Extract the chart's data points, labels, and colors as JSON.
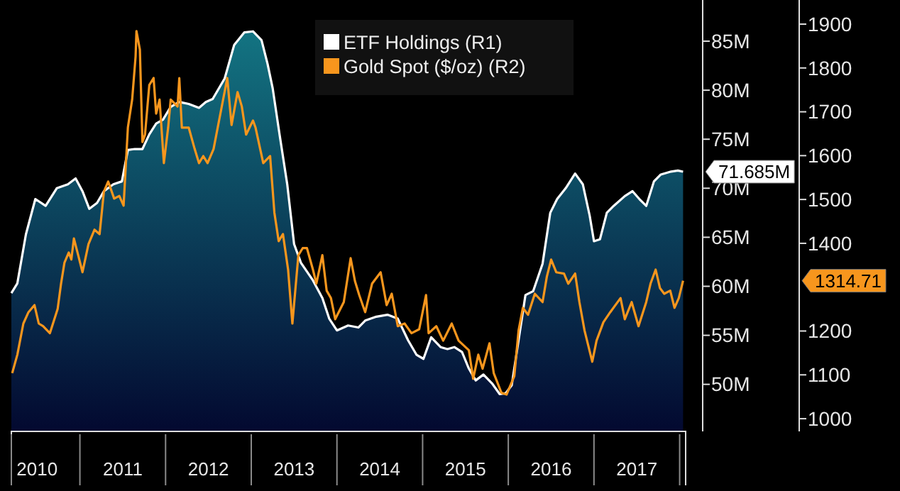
{
  "chart_data": {
    "type": "area",
    "xlim": [
      2010.2,
      2018.07
    ],
    "xticks": [
      {
        "value": 2010.5,
        "label": "2010"
      },
      {
        "value": 2011.5,
        "label": "2011"
      },
      {
        "value": 2012.5,
        "label": "2012"
      },
      {
        "value": 2013.5,
        "label": "2013"
      },
      {
        "value": 2014.5,
        "label": "2014"
      },
      {
        "value": 2015.5,
        "label": "2015"
      },
      {
        "value": 2016.5,
        "label": "2016"
      },
      {
        "value": 2017.5,
        "label": "2017"
      }
    ],
    "ylim": [
      45.2,
      89.2
    ],
    "yticks": [
      {
        "value": 50,
        "label": "50M"
      },
      {
        "value": 55,
        "label": "55M"
      },
      {
        "value": 60,
        "label": "60M"
      },
      {
        "value": 65,
        "label": "65M"
      },
      {
        "value": 70,
        "label": "70M"
      },
      {
        "value": 75,
        "label": "75M"
      },
      {
        "value": 80,
        "label": "80M"
      },
      {
        "value": 85,
        "label": "85M"
      }
    ],
    "y2lim": [
      971,
      1955
    ],
    "y2ticks": [
      1000,
      1100,
      1200,
      1400,
      1500,
      1600,
      1700,
      1800,
      1900
    ],
    "legend": "top",
    "annotations": [
      "71.685M",
      "1314.71"
    ],
    "series": [
      {
        "name": "ETF Holdings (R1)",
        "color": "#ffffff",
        "x": [
          2010.2,
          2010.27,
          2010.37,
          2010.48,
          2010.6,
          2010.73,
          2010.86,
          2010.95,
          2011.03,
          2011.11,
          2011.2,
          2011.28,
          2011.39,
          2011.49,
          2011.56,
          2011.64,
          2011.73,
          2011.81,
          2011.89,
          2011.97,
          2012.06,
          2012.16,
          2012.27,
          2012.39,
          2012.47,
          2012.55,
          2012.69,
          2012.8,
          2012.92,
          2013.02,
          2013.12,
          2013.19,
          2013.25,
          2013.33,
          2013.42,
          2013.5,
          2013.58,
          2013.72,
          2013.83,
          2013.91,
          2014.0,
          2014.13,
          2014.25,
          2014.33,
          2014.46,
          2014.59,
          2014.71,
          2014.83,
          2014.93,
          2015.01,
          2015.1,
          2015.21,
          2015.29,
          2015.37,
          2015.46,
          2015.54,
          2015.62,
          2015.71,
          2015.81,
          2015.9,
          2015.97,
          2016.04,
          2016.12,
          2016.2,
          2016.29,
          2016.4,
          2016.49,
          2016.57,
          2016.67,
          2016.78,
          2016.87,
          2016.95,
          2017.0,
          2017.07,
          2017.15,
          2017.23,
          2017.36,
          2017.45,
          2017.53,
          2017.61,
          2017.7,
          2017.78,
          2017.9,
          2017.98,
          2018.04
        ],
        "values": [
          59.3,
          60.3,
          65.3,
          68.9,
          68.2,
          70.0,
          70.4,
          71.0,
          69.7,
          67.9,
          68.5,
          69.7,
          70.4,
          70.7,
          73.9,
          74.0,
          74.0,
          75.5,
          76.6,
          77.0,
          78.3,
          78.8,
          78.6,
          78.2,
          78.8,
          79.1,
          81.2,
          84.6,
          85.9,
          86.0,
          85.1,
          82.7,
          80.2,
          75.5,
          70.4,
          64.3,
          62.4,
          60.6,
          58.8,
          56.7,
          55.5,
          56.0,
          55.8,
          56.5,
          56.9,
          57.1,
          56.7,
          54.5,
          53.0,
          52.6,
          54.8,
          53.8,
          53.6,
          53.8,
          53.3,
          51.6,
          50.4,
          51.0,
          50.1,
          49.0,
          49.1,
          49.9,
          54.5,
          59.1,
          59.5,
          62.3,
          67.5,
          68.9,
          70.0,
          71.5,
          70.4,
          67.2,
          64.6,
          64.8,
          67.5,
          68.2,
          69.2,
          69.7,
          68.9,
          68.2,
          70.7,
          71.4,
          71.7,
          71.8,
          71.685
        ]
      },
      {
        "name": "Gold Spot ($/oz) (R2)",
        "type": "line",
        "axis": "y2",
        "color": "#f7961d",
        "x": [
          2010.21,
          2010.27,
          2010.34,
          2010.4,
          2010.47,
          2010.52,
          2010.57,
          2010.65,
          2010.74,
          2010.78,
          2010.82,
          2010.87,
          2010.9,
          2010.93,
          2010.98,
          2011.03,
          2011.1,
          2011.17,
          2011.23,
          2011.28,
          2011.33,
          2011.4,
          2011.46,
          2011.51,
          2011.56,
          2011.61,
          2011.65,
          2011.66,
          2011.7,
          2011.73,
          2011.76,
          2011.81,
          2011.86,
          2011.89,
          2011.93,
          2011.98,
          2012.03,
          2012.06,
          2012.14,
          2012.16,
          2012.19,
          2012.27,
          2012.34,
          2012.39,
          2012.44,
          2012.49,
          2012.56,
          2012.64,
          2012.72,
          2012.77,
          2012.84,
          2012.89,
          2012.94,
          2013.02,
          2013.05,
          2013.14,
          2013.22,
          2013.27,
          2013.32,
          2013.37,
          2013.43,
          2013.48,
          2013.55,
          2013.6,
          2013.65,
          2013.72,
          2013.76,
          2013.83,
          2013.88,
          2013.93,
          2013.98,
          2014.08,
          2014.16,
          2014.21,
          2014.26,
          2014.33,
          2014.41,
          2014.51,
          2014.58,
          2014.64,
          2014.71,
          2014.79,
          2014.87,
          2014.96,
          2015.04,
          2015.07,
          2015.16,
          2015.24,
          2015.34,
          2015.42,
          2015.54,
          2015.59,
          2015.65,
          2015.7,
          2015.78,
          2015.83,
          2015.92,
          2015.98,
          2016.07,
          2016.12,
          2016.17,
          2016.23,
          2016.31,
          2016.4,
          2016.45,
          2016.5,
          2016.56,
          2016.65,
          2016.7,
          2016.78,
          2016.83,
          2016.89,
          2016.98,
          2017.03,
          2017.11,
          2017.19,
          2017.31,
          2017.36,
          2017.44,
          2017.52,
          2017.61,
          2017.66,
          2017.72,
          2017.77,
          2017.82,
          2017.89,
          2017.94,
          2017.99,
          2018.04
        ],
        "values": [
          1104,
          1146,
          1217,
          1243,
          1259,
          1217,
          1211,
          1195,
          1250,
          1308,
          1356,
          1379,
          1363,
          1411,
          1373,
          1334,
          1398,
          1431,
          1421,
          1518,
          1541,
          1502,
          1508,
          1486,
          1664,
          1728,
          1826,
          1884,
          1842,
          1631,
          1648,
          1761,
          1777,
          1696,
          1728,
          1583,
          1664,
          1728,
          1712,
          1777,
          1664,
          1664,
          1615,
          1583,
          1599,
          1583,
          1615,
          1696,
          1777,
          1670,
          1745,
          1712,
          1648,
          1680,
          1664,
          1583,
          1599,
          1470,
          1405,
          1421,
          1340,
          1217,
          1373,
          1389,
          1389,
          1340,
          1308,
          1373,
          1292,
          1275,
          1227,
          1266,
          1366,
          1314,
          1282,
          1243,
          1308,
          1334,
          1259,
          1285,
          1211,
          1217,
          1195,
          1204,
          1282,
          1195,
          1211,
          1178,
          1217,
          1178,
          1156,
          1091,
          1146,
          1114,
          1172,
          1104,
          1059,
          1055,
          1097,
          1201,
          1253,
          1237,
          1285,
          1266,
          1324,
          1363,
          1334,
          1331,
          1308,
          1331,
          1266,
          1201,
          1130,
          1178,
          1220,
          1243,
          1275,
          1227,
          1266,
          1211,
          1266,
          1308,
          1340,
          1298,
          1285,
          1292,
          1253,
          1275,
          1314.71
        ]
      }
    ]
  }
}
